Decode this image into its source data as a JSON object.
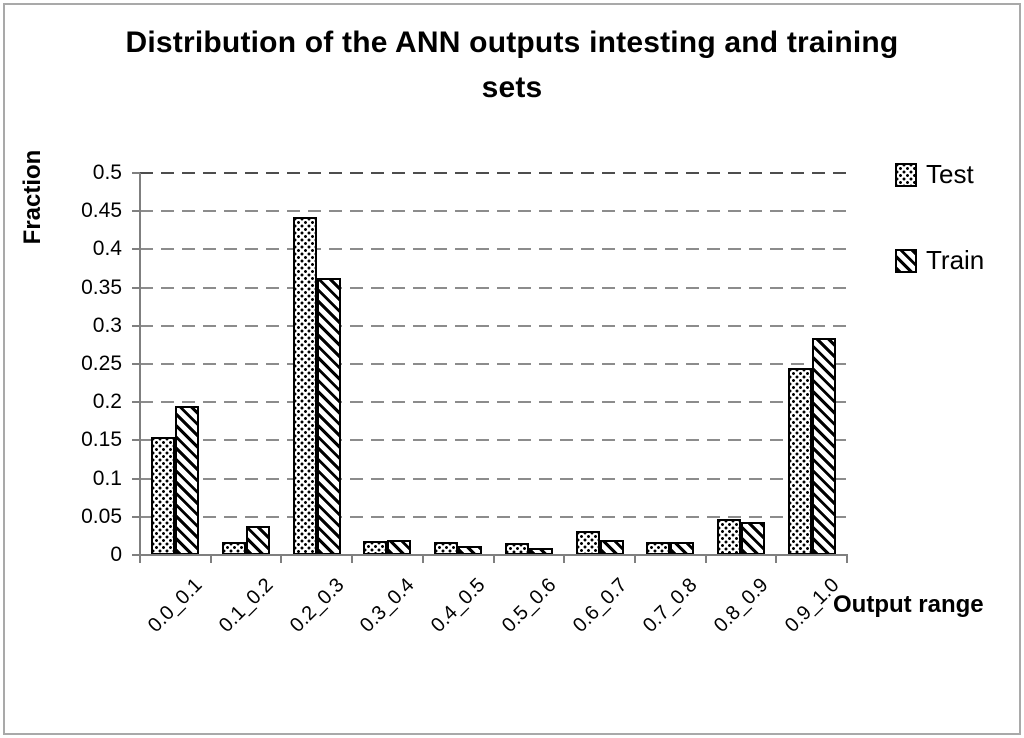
{
  "page": {
    "background": "#ffffff",
    "frame_border_color": "#a9a9a9"
  },
  "colors": {
    "text": "#000000",
    "axis": "#7f7f7f",
    "gridline": "#8c8c8c",
    "gridline_top": "#4d4d4d",
    "bar_fill": "#ffffff",
    "bar_border": "#000000"
  },
  "chart_data": {
    "type": "bar",
    "title": "Distribution of the ANN outputs intesting and training sets",
    "title_lines": [
      "Distribution of the ANN outputs intesting and training",
      "sets"
    ],
    "ylabel": "Fraction",
    "xlabel": "Output range",
    "categories": [
      "0.0_0.1",
      "0.1_0.2",
      "0.2_0.3",
      "0.3_0.4",
      "0.4_0.5",
      "0.5_0.6",
      "0.6_0.7",
      "0.7_0.8",
      "0.8_0.9",
      "0.9_1.0"
    ],
    "series": [
      {
        "name": "Test",
        "pattern": "dots",
        "values": [
          0.155,
          0.017,
          0.443,
          0.018,
          0.017,
          0.016,
          0.031,
          0.017,
          0.047,
          0.245
        ]
      },
      {
        "name": "Train",
        "pattern": "diagonal-stripes",
        "values": [
          0.195,
          0.038,
          0.362,
          0.02,
          0.012,
          0.009,
          0.02,
          0.017,
          0.043,
          0.284
        ]
      }
    ],
    "ylim": [
      0,
      0.5
    ],
    "ytick_step": 0.05,
    "ytick_labels": [
      "0",
      "0.05",
      "0.1",
      "0.15",
      "0.2",
      "0.25",
      "0.3",
      "0.35",
      "0.4",
      "0.45",
      "0.5"
    ],
    "grid": "horizontal-dashed",
    "legend_position": "right"
  }
}
